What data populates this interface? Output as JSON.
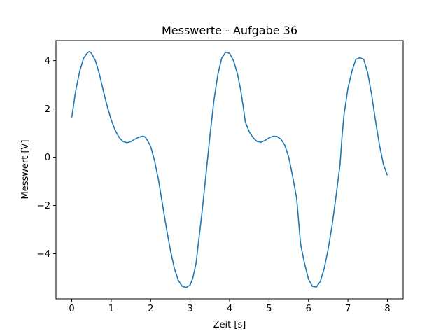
{
  "chart_data": {
    "type": "line",
    "title": "Messwerte - Aufgabe 36",
    "xlabel": "Zeit [s]",
    "ylabel": "Messwert [V]",
    "xlim": [
      -0.4,
      8.4
    ],
    "ylim": [
      -5.87,
      4.83
    ],
    "x_ticks": [
      0,
      1,
      2,
      3,
      4,
      5,
      6,
      7,
      8
    ],
    "x_tick_labels": [
      "0",
      "1",
      "2",
      "3",
      "4",
      "5",
      "6",
      "7",
      "8"
    ],
    "y_ticks": [
      -4,
      -2,
      0,
      2,
      4
    ],
    "y_tick_labels": [
      "−4",
      "−2",
      "0",
      "2",
      "4"
    ],
    "grid": false,
    "line_color": "#1f77b4",
    "series": [
      {
        "x": [
          0,
          0.1,
          0.2,
          0.3,
          0.4,
          0.45,
          0.5,
          0.6,
          0.7,
          0.8,
          0.9,
          1.0,
          1.1,
          1.2,
          1.3,
          1.4,
          1.5,
          1.6,
          1.7,
          1.8,
          1.85,
          1.9,
          2.0,
          2.1,
          2.2,
          2.3,
          2.4,
          2.5,
          2.6,
          2.7,
          2.8,
          2.9,
          3.0,
          3.07,
          3.15,
          3.2,
          3.3,
          3.4,
          3.5,
          3.6,
          3.7,
          3.8,
          3.9,
          4.0,
          4.1,
          4.2,
          4.28,
          4.35,
          4.4,
          4.5,
          4.6,
          4.7,
          4.8,
          4.9,
          5.0,
          5.1,
          5.2,
          5.3,
          5.4,
          5.5,
          5.6,
          5.7,
          5.75,
          5.8,
          5.9,
          6.0,
          6.1,
          6.2,
          6.3,
          6.4,
          6.5,
          6.6,
          6.7,
          6.8,
          6.85,
          6.9,
          7.0,
          7.1,
          7.2,
          7.3,
          7.4,
          7.5,
          7.6,
          7.7,
          7.8,
          7.9,
          8.0
        ],
        "y": [
          1.65,
          2.75,
          3.55,
          4.1,
          4.33,
          4.37,
          4.3,
          4.0,
          3.45,
          2.75,
          2.1,
          1.55,
          1.12,
          0.82,
          0.65,
          0.6,
          0.65,
          0.75,
          0.83,
          0.87,
          0.85,
          0.75,
          0.45,
          -0.15,
          -0.95,
          -1.95,
          -2.95,
          -3.85,
          -4.6,
          -5.1,
          -5.35,
          -5.4,
          -5.3,
          -5.0,
          -4.4,
          -3.7,
          -2.3,
          -0.75,
          0.85,
          2.3,
          3.4,
          4.1,
          4.35,
          4.3,
          4.0,
          3.45,
          2.8,
          2.05,
          1.45,
          1.05,
          0.8,
          0.65,
          0.62,
          0.7,
          0.8,
          0.87,
          0.86,
          0.75,
          0.5,
          0.0,
          -0.8,
          -1.7,
          -2.65,
          -3.6,
          -4.4,
          -5.05,
          -5.35,
          -5.38,
          -5.15,
          -4.6,
          -3.8,
          -2.8,
          -1.6,
          -0.3,
          0.85,
          1.75,
          2.85,
          3.55,
          4.05,
          4.12,
          4.05,
          3.5,
          2.6,
          1.5,
          0.5,
          -0.3,
          -0.75
        ]
      }
    ]
  }
}
